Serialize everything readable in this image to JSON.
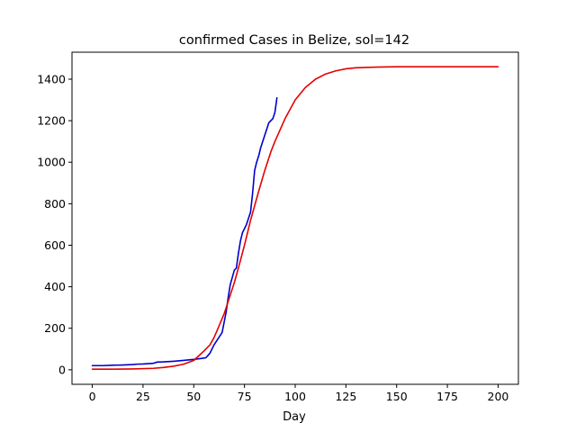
{
  "chart_data": {
    "type": "line",
    "title": "confirmed Cases in Belize, sol=142",
    "xlabel": "Day",
    "ylabel": "",
    "xlim": [
      -10,
      210
    ],
    "ylim": [
      -70,
      1530
    ],
    "x_ticks": [
      0,
      25,
      50,
      75,
      100,
      125,
      150,
      175,
      200
    ],
    "y_ticks": [
      0,
      200,
      400,
      600,
      800,
      1000,
      1200,
      1400
    ],
    "grid": false,
    "legend": "none",
    "series": [
      {
        "color": "#0000cc",
        "x": [
          0,
          5,
          10,
          15,
          20,
          22,
          25,
          30,
          32,
          35,
          40,
          45,
          50,
          54,
          56,
          58,
          60,
          62,
          64,
          66,
          67,
          68,
          70,
          71,
          72,
          73,
          74,
          75,
          76,
          77,
          78,
          79,
          80,
          81,
          82,
          83,
          84,
          85,
          86,
          87,
          88,
          89,
          90,
          91
        ],
        "y": [
          20,
          20,
          22,
          23,
          25,
          27,
          28,
          31,
          37,
          38,
          41,
          45,
          50,
          55,
          58,
          80,
          120,
          150,
          180,
          280,
          350,
          410,
          480,
          490,
          560,
          620,
          660,
          680,
          700,
          730,
          760,
          850,
          960,
          1000,
          1030,
          1070,
          1100,
          1130,
          1160,
          1190,
          1200,
          1210,
          1240,
          1310
        ]
      },
      {
        "color": "#e60000",
        "x": [
          0,
          10,
          20,
          30,
          35,
          40,
          45,
          50,
          55,
          58,
          60,
          62,
          65,
          68,
          70,
          72,
          75,
          78,
          80,
          82,
          85,
          88,
          90,
          95,
          100,
          105,
          110,
          115,
          120,
          125,
          130,
          140,
          150,
          160,
          170,
          180,
          190,
          200
        ],
        "y": [
          3,
          3,
          4,
          7,
          11,
          17,
          27,
          45,
          90,
          120,
          155,
          200,
          270,
          360,
          420,
          490,
          600,
          720,
          790,
          860,
          960,
          1050,
          1100,
          1210,
          1300,
          1360,
          1400,
          1425,
          1440,
          1450,
          1455,
          1458,
          1460,
          1460,
          1460,
          1460,
          1460,
          1460
        ]
      }
    ]
  }
}
